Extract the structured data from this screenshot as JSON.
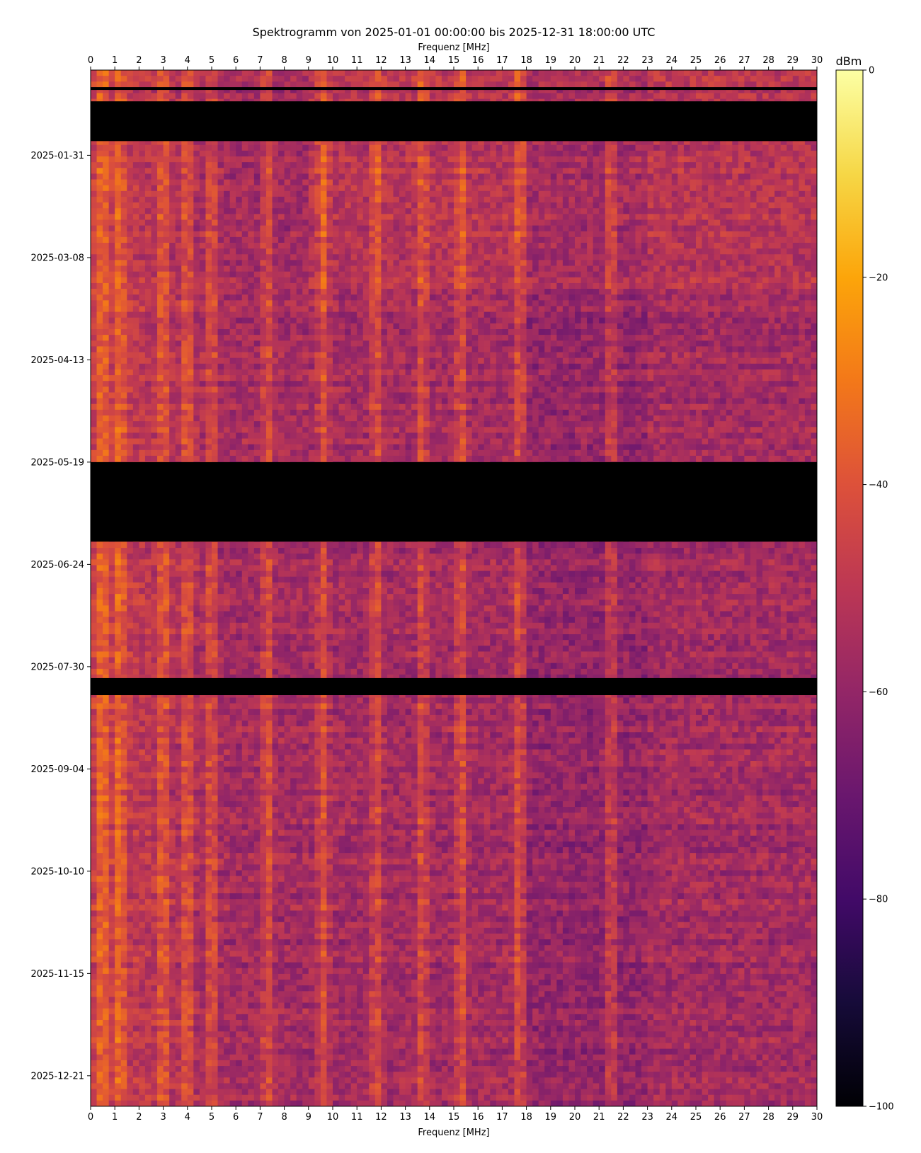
{
  "chart_data": {
    "type": "heatmap",
    "title": "Spektrogramm von 2025-01-01 00:00:00 bis 2025-12-31 18:00:00 UTC",
    "xlabel_top": "Frequenz [MHz]",
    "xlabel_bottom": "Frequenz [MHz]",
    "x_range": [
      0,
      30
    ],
    "x_ticks": [
      "0",
      "1",
      "2",
      "3",
      "4",
      "5",
      "6",
      "7",
      "8",
      "9",
      "10",
      "11",
      "12",
      "13",
      "14",
      "15",
      "16",
      "17",
      "18",
      "19",
      "20",
      "21",
      "22",
      "23",
      "24",
      "25",
      "26",
      "27",
      "28",
      "29",
      "30"
    ],
    "y_range": [
      "2025-01-01",
      "2025-12-31"
    ],
    "y_ticks": [
      "2025-01-31",
      "2025-03-08",
      "2025-04-13",
      "2025-05-19",
      "2025-06-24",
      "2025-07-30",
      "2025-09-04",
      "2025-10-10",
      "2025-11-15",
      "2025-12-21"
    ],
    "colorbar": {
      "label": "dBm",
      "range": [
        -100,
        0
      ],
      "ticks": [
        "0",
        "−20",
        "−40",
        "−60",
        "−80",
        "−100"
      ],
      "colormap": "inferno"
    },
    "data_gaps": [
      {
        "from": "2025-01-07",
        "to": "2025-01-08"
      },
      {
        "from": "2025-01-12",
        "to": "2025-01-26"
      },
      {
        "from": "2025-05-19",
        "to": "2025-06-16"
      },
      {
        "from": "2025-08-03",
        "to": "2025-08-09"
      }
    ],
    "strong_bands_mhz": [
      0.5,
      1.2,
      3.0,
      4.0,
      5.0,
      7.3,
      9.6,
      11.8,
      13.7,
      15.3,
      17.7,
      21.5
    ]
  }
}
